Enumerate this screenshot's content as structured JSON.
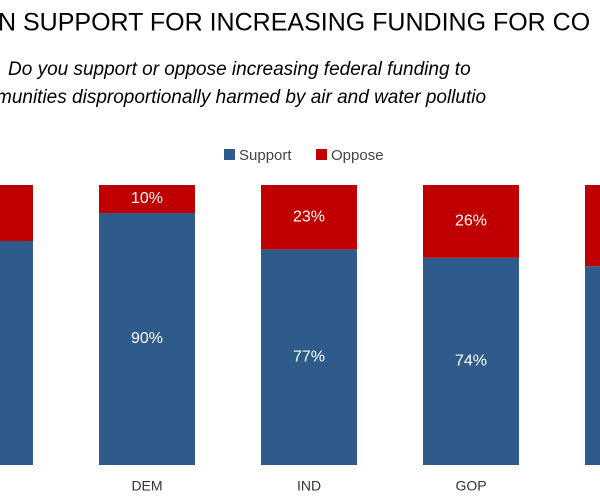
{
  "chart_data": {
    "type": "stacked-bar",
    "title": "N SUPPORT FOR INCREASING FUNDING FOR CO",
    "subtitle": [
      "Do you support or oppose increasing federal funding to",
      "munities disproportionally harmed by air and water pollutio"
    ],
    "categories": [
      null,
      "DEM",
      "IND",
      "GOP",
      null
    ],
    "ylim": [
      0,
      100
    ],
    "series": [
      {
        "name": "Support",
        "color": "#2e5b8a",
        "values": [
          80,
          90,
          77,
          74,
          71
        ],
        "value_labels": [
          null,
          "90%",
          "77%",
          "74%",
          null
        ]
      },
      {
        "name": "Oppose",
        "color": "#c00000",
        "values": [
          20,
          10,
          23,
          26,
          29
        ],
        "value_labels": [
          null,
          "10%",
          "23%",
          "26%",
          null
        ]
      }
    ]
  }
}
